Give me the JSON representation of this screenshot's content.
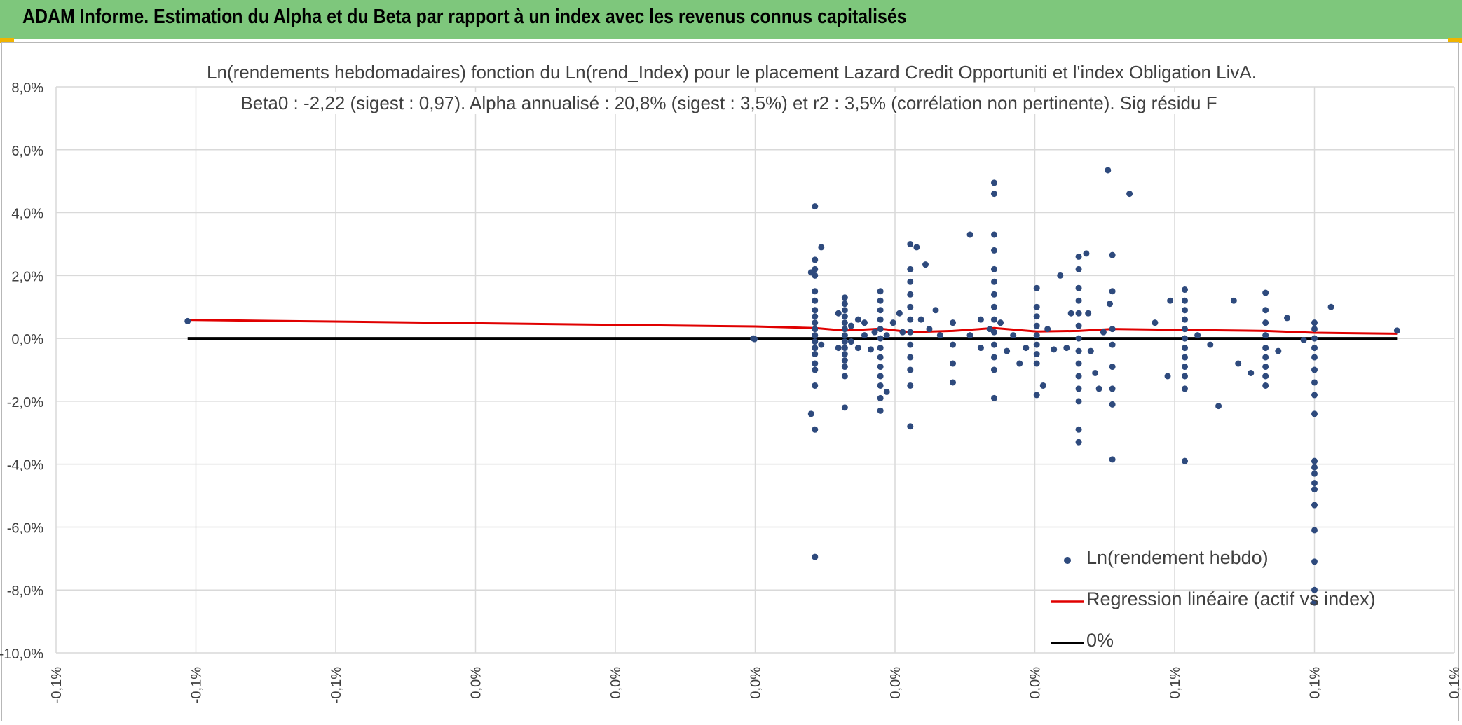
{
  "header": {
    "title": "ADAM Informe. Estimation du Alpha et du Beta par rapport à un index avec les revenus connus capitalisés"
  },
  "colors": {
    "header_bg": "#7ec77c",
    "points": "#2e4a7d",
    "regression": "#e00000",
    "zero_line": "#000000",
    "grid": "#d9d9d9"
  },
  "chart_data": {
    "type": "scatter",
    "title": "Ln(rendements hebdomadaires) fonction du Ln(rend_Index) pour le placement Lazard Credit Opportuniti et l'index Obligation LivA.",
    "subtitle": "Beta0 : -2,22 (sigest : 0,97). Alpha annualisé : 20,8% (sigest : 3,5%) et r2 : 3,5% (corrélation non pertinente). Sig résidu F",
    "xlabel": "",
    "ylabel": "",
    "xlim": [
      -0.0011,
      0.0011
    ],
    "ylim": [
      -10,
      8
    ],
    "x_tick_labels": [
      "-0,1%",
      "-0,1%",
      "-0,1%",
      "0,0%",
      "0,0%",
      "0,0%",
      "0,0%",
      "0,0%",
      "0,1%",
      "0,1%",
      "0,1%"
    ],
    "y_tick_labels": [
      "8,0%",
      "6,0%",
      "4,0%",
      "2,0%",
      "0,0%",
      "-2,0%",
      "-4,0%",
      "-6,0%",
      "-8,0%",
      "-10,0%"
    ],
    "legend": [
      {
        "label": "Ln(rendement hebdo)",
        "kind": "marker"
      },
      {
        "label": "Regression linéaire (actif vs index)",
        "kind": "line"
      },
      {
        "label": "0%",
        "kind": "line"
      }
    ],
    "legend_position": "bottom-right",
    "series": [
      {
        "name": "Ln(rendement hebdo)",
        "type": "scatter",
        "points": [
          [
            -0.000893,
            0.55
          ],
          [
            -3e-06,
            0.0
          ],
          [
            -1e-06,
            -0.02
          ],
          [
            9.4e-05,
            4.2
          ],
          [
            9.4e-05,
            2.5
          ],
          [
            9.4e-05,
            2.2
          ],
          [
            9.4e-05,
            2.0
          ],
          [
            9.4e-05,
            1.5
          ],
          [
            9.4e-05,
            1.2
          ],
          [
            9.4e-05,
            0.9
          ],
          [
            9.4e-05,
            0.7
          ],
          [
            9.4e-05,
            0.5
          ],
          [
            9.4e-05,
            0.3
          ],
          [
            9.4e-05,
            0.1
          ],
          [
            9.4e-05,
            -0.1
          ],
          [
            9.4e-05,
            -0.3
          ],
          [
            9.4e-05,
            -0.5
          ],
          [
            9.4e-05,
            -0.8
          ],
          [
            9.4e-05,
            -1.0
          ],
          [
            9.4e-05,
            -1.5
          ],
          [
            9.4e-05,
            -2.9
          ],
          [
            9.4e-05,
            -6.95
          ],
          [
            8.8e-05,
            2.1
          ],
          [
            8.8e-05,
            -2.4
          ],
          [
            0.000104,
            2.9
          ],
          [
            0.000104,
            -0.2
          ],
          [
            0.000141,
            1.3
          ],
          [
            0.000141,
            1.1
          ],
          [
            0.000141,
            0.9
          ],
          [
            0.000141,
            0.7
          ],
          [
            0.000141,
            0.5
          ],
          [
            0.000141,
            0.3
          ],
          [
            0.000141,
            0.1
          ],
          [
            0.000141,
            -0.1
          ],
          [
            0.000141,
            -0.3
          ],
          [
            0.000141,
            -0.5
          ],
          [
            0.000141,
            -0.7
          ],
          [
            0.000141,
            -0.9
          ],
          [
            0.000141,
            -1.2
          ],
          [
            0.000141,
            -2.2
          ],
          [
            0.000131,
            0.8
          ],
          [
            0.000131,
            -0.3
          ],
          [
            0.000151,
            0.4
          ],
          [
            0.000151,
            -0.1
          ],
          [
            0.000162,
            0.6
          ],
          [
            0.000162,
            -0.3
          ],
          [
            0.000172,
            0.5
          ],
          [
            0.000172,
            0.1
          ],
          [
            0.000182,
            -0.35
          ],
          [
            0.000188,
            0.2
          ],
          [
            0.000197,
            1.5
          ],
          [
            0.000197,
            1.2
          ],
          [
            0.000197,
            0.9
          ],
          [
            0.000197,
            0.6
          ],
          [
            0.000197,
            0.3
          ],
          [
            0.000197,
            0.0
          ],
          [
            0.000197,
            -0.3
          ],
          [
            0.000197,
            -0.6
          ],
          [
            0.000197,
            -0.9
          ],
          [
            0.000197,
            -1.2
          ],
          [
            0.000197,
            -1.5
          ],
          [
            0.000197,
            -1.9
          ],
          [
            0.000197,
            -2.3
          ],
          [
            0.000207,
            0.1
          ],
          [
            0.000207,
            -1.7
          ],
          [
            0.000217,
            0.5
          ],
          [
            0.000227,
            0.8
          ],
          [
            0.000232,
            0.2
          ],
          [
            0.000244,
            3.0
          ],
          [
            0.000244,
            2.2
          ],
          [
            0.000244,
            1.8
          ],
          [
            0.000244,
            1.4
          ],
          [
            0.000244,
            1.0
          ],
          [
            0.000244,
            0.6
          ],
          [
            0.000244,
            0.2
          ],
          [
            0.000244,
            -0.2
          ],
          [
            0.000244,
            -0.6
          ],
          [
            0.000244,
            -1.0
          ],
          [
            0.000244,
            -1.5
          ],
          [
            0.000244,
            -2.8
          ],
          [
            0.000254,
            2.9
          ],
          [
            0.000261,
            0.6
          ],
          [
            0.000268,
            2.35
          ],
          [
            0.000274,
            0.3
          ],
          [
            0.000284,
            0.9
          ],
          [
            0.000291,
            0.1
          ],
          [
            0.000311,
            0.5
          ],
          [
            0.000311,
            -0.2
          ],
          [
            0.000311,
            -0.8
          ],
          [
            0.000311,
            -1.4
          ],
          [
            0.000338,
            3.3
          ],
          [
            0.000338,
            0.1
          ],
          [
            0.000355,
            0.6
          ],
          [
            0.000355,
            -0.3
          ],
          [
            0.000376,
            4.95
          ],
          [
            0.000376,
            4.6
          ],
          [
            0.000376,
            3.3
          ],
          [
            0.000376,
            2.8
          ],
          [
            0.000376,
            2.2
          ],
          [
            0.000376,
            1.8
          ],
          [
            0.000376,
            1.4
          ],
          [
            0.000376,
            1.0
          ],
          [
            0.000376,
            0.6
          ],
          [
            0.000376,
            0.2
          ],
          [
            0.000376,
            -0.2
          ],
          [
            0.000376,
            -0.6
          ],
          [
            0.000376,
            -1.0
          ],
          [
            0.000376,
            -1.9
          ],
          [
            0.000369,
            0.3
          ],
          [
            0.000386,
            0.5
          ],
          [
            0.000396,
            -0.4
          ],
          [
            0.000406,
            0.1
          ],
          [
            0.000416,
            -0.8
          ],
          [
            0.000426,
            -0.3
          ],
          [
            0.000443,
            1.6
          ],
          [
            0.000443,
            1.0
          ],
          [
            0.000443,
            0.7
          ],
          [
            0.000443,
            0.4
          ],
          [
            0.000443,
            0.1
          ],
          [
            0.000443,
            -0.2
          ],
          [
            0.000443,
            -0.5
          ],
          [
            0.000443,
            -0.8
          ],
          [
            0.000443,
            -1.8
          ],
          [
            0.000453,
            -1.5
          ],
          [
            0.00046,
            0.3
          ],
          [
            0.00047,
            -0.35
          ],
          [
            0.00048,
            2.0
          ],
          [
            0.00049,
            -0.3
          ],
          [
            0.000497,
            0.8
          ],
          [
            0.000509,
            2.6
          ],
          [
            0.000509,
            2.2
          ],
          [
            0.000509,
            1.6
          ],
          [
            0.000509,
            1.2
          ],
          [
            0.000509,
            0.8
          ],
          [
            0.000509,
            0.4
          ],
          [
            0.000509,
            0.0
          ],
          [
            0.000509,
            -0.4
          ],
          [
            0.000509,
            -0.8
          ],
          [
            0.000509,
            -1.2
          ],
          [
            0.000509,
            -1.6
          ],
          [
            0.000509,
            -2.0
          ],
          [
            0.000509,
            -2.9
          ],
          [
            0.000509,
            -3.3
          ],
          [
            0.000521,
            2.7
          ],
          [
            0.000524,
            0.8
          ],
          [
            0.000528,
            -0.4
          ],
          [
            0.000535,
            -1.1
          ],
          [
            0.000541,
            -1.6
          ],
          [
            0.000548,
            0.2
          ],
          [
            0.000555,
            5.35
          ],
          [
            0.000558,
            1.1
          ],
          [
            0.000562,
            2.65
          ],
          [
            0.000562,
            1.5
          ],
          [
            0.000562,
            0.3
          ],
          [
            0.000562,
            -0.2
          ],
          [
            0.000562,
            -0.9
          ],
          [
            0.000562,
            -1.6
          ],
          [
            0.000562,
            -2.1
          ],
          [
            0.000562,
            -3.85
          ],
          [
            0.000589,
            4.6
          ],
          [
            0.000629,
            0.5
          ],
          [
            0.000649,
            -1.2
          ],
          [
            0.000653,
            1.2
          ],
          [
            0.000676,
            1.55
          ],
          [
            0.000676,
            1.2
          ],
          [
            0.000676,
            0.9
          ],
          [
            0.000676,
            0.6
          ],
          [
            0.000676,
            0.3
          ],
          [
            0.000676,
            0.0
          ],
          [
            0.000676,
            -0.3
          ],
          [
            0.000676,
            -0.6
          ],
          [
            0.000676,
            -0.9
          ],
          [
            0.000676,
            -1.2
          ],
          [
            0.000676,
            -1.6
          ],
          [
            0.000676,
            -3.9
          ],
          [
            0.000696,
            0.1
          ],
          [
            0.000716,
            -0.2
          ],
          [
            0.000729,
            -2.15
          ],
          [
            0.000753,
            1.2
          ],
          [
            0.00076,
            -0.8
          ],
          [
            0.00078,
            -1.1
          ],
          [
            0.000803,
            1.45
          ],
          [
            0.000803,
            0.9
          ],
          [
            0.000803,
            0.5
          ],
          [
            0.000803,
            0.1
          ],
          [
            0.000803,
            -0.3
          ],
          [
            0.000803,
            -0.6
          ],
          [
            0.000803,
            -0.9
          ],
          [
            0.000803,
            -1.2
          ],
          [
            0.000803,
            -1.5
          ],
          [
            0.000823,
            -0.4
          ],
          [
            0.000837,
            0.65
          ],
          [
            0.000863,
            -0.05
          ],
          [
            0.00088,
            0.5
          ],
          [
            0.00088,
            0.3
          ],
          [
            0.00088,
            0.0
          ],
          [
            0.00088,
            -0.3
          ],
          [
            0.00088,
            -0.6
          ],
          [
            0.00088,
            -1.0
          ],
          [
            0.00088,
            -1.4
          ],
          [
            0.00088,
            -1.8
          ],
          [
            0.00088,
            -2.4
          ],
          [
            0.00088,
            -3.9
          ],
          [
            0.00088,
            -4.1
          ],
          [
            0.00088,
            -4.3
          ],
          [
            0.00088,
            -4.6
          ],
          [
            0.00088,
            -4.8
          ],
          [
            0.00088,
            -5.3
          ],
          [
            0.00088,
            -6.1
          ],
          [
            0.00088,
            -7.1
          ],
          [
            0.00088,
            -8.0
          ],
          [
            0.00088,
            -8.4
          ],
          [
            0.000906,
            1.0
          ],
          [
            0.00101,
            0.25
          ]
        ]
      },
      {
        "name": "Regression linéaire (actif vs index)",
        "type": "line",
        "points": [
          [
            -0.000893,
            0.59
          ],
          [
            0.0,
            0.38
          ],
          [
            9.4e-05,
            0.33
          ],
          [
            0.000141,
            0.25
          ],
          [
            0.000197,
            0.31
          ],
          [
            0.000244,
            0.2
          ],
          [
            0.000311,
            0.24
          ],
          [
            0.000376,
            0.33
          ],
          [
            0.000443,
            0.22
          ],
          [
            0.000509,
            0.24
          ],
          [
            0.000562,
            0.3
          ],
          [
            0.000676,
            0.27
          ],
          [
            0.000803,
            0.24
          ],
          [
            0.00088,
            0.18
          ],
          [
            0.00101,
            0.15
          ]
        ]
      },
      {
        "name": "0%",
        "type": "line",
        "points": [
          [
            -0.000893,
            0.0
          ],
          [
            0.00101,
            0.0
          ]
        ]
      }
    ]
  }
}
